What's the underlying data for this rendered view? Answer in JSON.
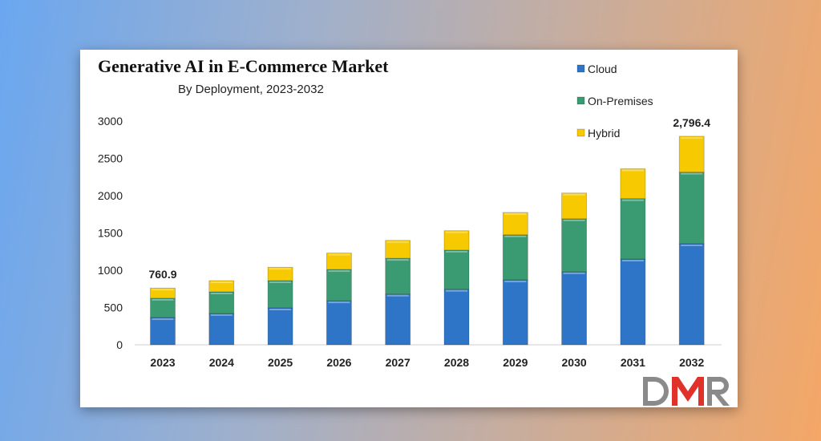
{
  "chart_data": {
    "type": "bar",
    "stacked": true,
    "title": "Generative AI in E-Commerce Market",
    "subtitle": "By Deployment, 2023-2032",
    "xlabel": "",
    "ylabel": "",
    "ylim": [
      0,
      3000
    ],
    "yticks": [
      0,
      500,
      1000,
      1500,
      2000,
      2500,
      3000
    ],
    "grid": false,
    "legend_position": "top-right",
    "categories": [
      "2023",
      "2024",
      "2025",
      "2026",
      "2027",
      "2028",
      "2029",
      "2030",
      "2031",
      "2032"
    ],
    "series": [
      {
        "name": "Cloud",
        "color": "#2e75c8",
        "values": [
          365,
          420,
          495,
          590,
          680,
          745,
          870,
          980,
          1150,
          1355
        ]
      },
      {
        "name": "On-Premises",
        "color": "#3a9a72",
        "values": [
          260,
          290,
          365,
          420,
          480,
          525,
          605,
          710,
          810,
          960
        ]
      },
      {
        "name": "Hybrid",
        "color": "#f7c900",
        "values": [
          135.9,
          150,
          180,
          220,
          240,
          260,
          300,
          345,
          400,
          481.4
        ]
      }
    ],
    "data_labels": [
      {
        "category": "2023",
        "text": "760.9"
      },
      {
        "category": "2032",
        "text": "2,796.4"
      }
    ]
  },
  "logo": {
    "text": "DMR",
    "colors": [
      "#8a8a8a",
      "#e0322b"
    ]
  }
}
